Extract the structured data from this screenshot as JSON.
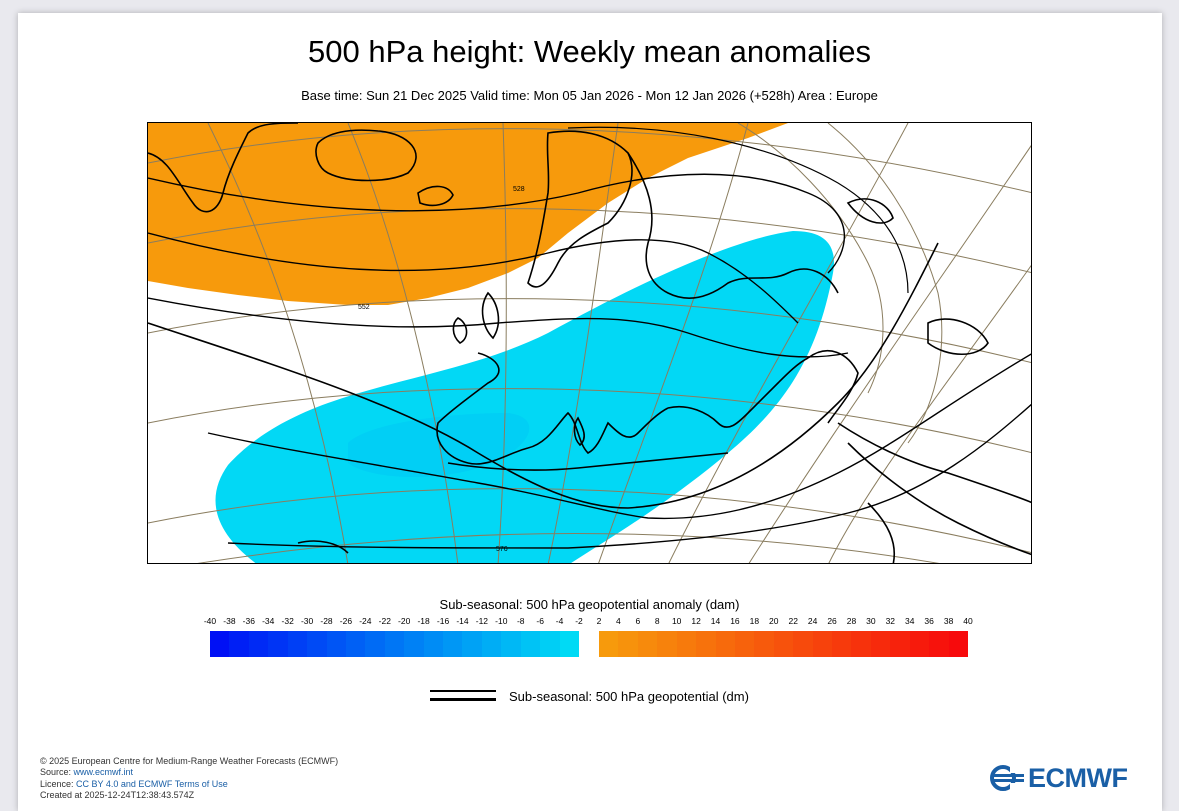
{
  "title": "500 hPa height: Weekly mean anomalies",
  "subtitle": "Base time: Sun 21 Dec 2025 Valid time: Mon 05 Jan 2026 - Mon 12 Jan 2026 (+528h) Area : Europe",
  "map": {
    "contour_labels": [
      "528",
      "552",
      "576"
    ],
    "colors": {
      "positive_anomaly": "#f79a0c",
      "negative_anomaly": "#02d8f5",
      "negative_core": "#00c6f5",
      "coastline": "#000000",
      "graticule": "#8a7d5f",
      "height_contour": "#000000"
    }
  },
  "colorbar": {
    "title": "Sub-seasonal: 500 hPa geopotential anomaly (dam)",
    "ticks": [
      "-40",
      "-38",
      "-36",
      "-34",
      "-32",
      "-30",
      "-28",
      "-26",
      "-24",
      "-22",
      "-20",
      "-18",
      "-16",
      "-14",
      "-12",
      "-10",
      "-8",
      "-6",
      "-4",
      "-2",
      "2",
      "4",
      "6",
      "8",
      "10",
      "12",
      "14",
      "16",
      "18",
      "20",
      "22",
      "24",
      "26",
      "28",
      "30",
      "32",
      "34",
      "36",
      "38",
      "40"
    ],
    "negative_colors": [
      "#0010f5",
      "#001ff5",
      "#002af5",
      "#0034f5",
      "#003ff5",
      "#004af5",
      "#0055f5",
      "#0060f5",
      "#006bf5",
      "#0076f5",
      "#0081f5",
      "#008cf5",
      "#0097f5",
      "#00a2f5",
      "#00adf5",
      "#00b8f5",
      "#00c3f5",
      "#00cef5",
      "#00daf5"
    ],
    "positive_colors": [
      "#f79a0c",
      "#f7920c",
      "#f78a0c",
      "#f7820c",
      "#f77a0c",
      "#f7720c",
      "#f76a0c",
      "#f7620c",
      "#f75a0c",
      "#f7520c",
      "#f74a0c",
      "#f7420c",
      "#f73a0c",
      "#f7320c",
      "#f72a0c",
      "#f7220c",
      "#f71a0c",
      "#f7120c",
      "#f70a0c"
    ]
  },
  "legend": {
    "contour_label": "Sub-seasonal: 500 hPa geopotential (dm)"
  },
  "footer": {
    "copyright": "© 2025 European Centre for Medium-Range Weather Forecasts (ECMWF)",
    "source_label": "Source: ",
    "source_link": "www.ecmwf.int",
    "licence_label": "Licence: ",
    "licence_link": "CC BY 4.0 and ECMWF Terms of Use",
    "created": "Created at 2025-12-24T12:38:43.574Z"
  },
  "logo": {
    "text": "ECMWF",
    "color": "#1a5fa6"
  }
}
